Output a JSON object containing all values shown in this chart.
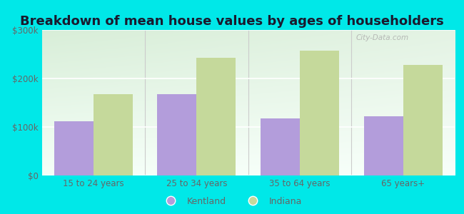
{
  "title": "Breakdown of mean house values by ages of householders",
  "categories": [
    "15 to 24 years",
    "25 to 34 years",
    "35 to 64 years",
    "65 years+"
  ],
  "kentland_values": [
    112000,
    168000,
    118000,
    122000
  ],
  "indiana_values": [
    168000,
    242000,
    258000,
    228000
  ],
  "kentland_color": "#b39ddb",
  "indiana_color": "#c5d99b",
  "bar_width": 0.38,
  "ylim": [
    0,
    300000
  ],
  "yticks": [
    0,
    100000,
    200000,
    300000
  ],
  "ytick_labels": [
    "$0",
    "$100k",
    "$200k",
    "$300k"
  ],
  "title_fontsize": 13,
  "legend_labels": [
    "Kentland",
    "Indiana"
  ],
  "watermark": "City-Data.com",
  "figure_bg": "#00e8e8",
  "plot_bg_top": "#d8eed8",
  "plot_bg_bottom": "#f5fff8",
  "tick_color": "#666666",
  "grid_color": "#e0e8d8"
}
